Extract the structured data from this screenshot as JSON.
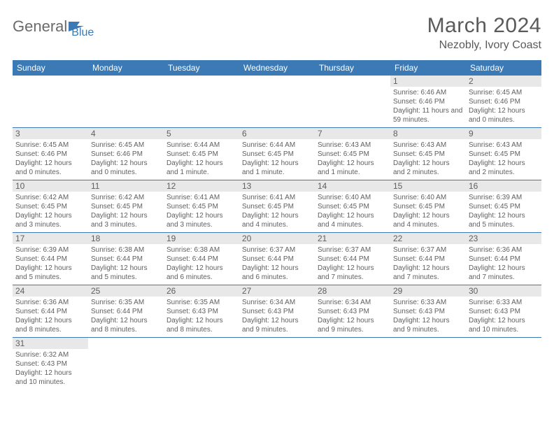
{
  "logo": {
    "text1": "General",
    "text2": "Blue"
  },
  "title": {
    "month": "March 2024",
    "location": "Nezobly, Ivory Coast"
  },
  "day_headers": [
    "Sunday",
    "Monday",
    "Tuesday",
    "Wednesday",
    "Thursday",
    "Friday",
    "Saturday"
  ],
  "colors": {
    "header_bg": "#3b7ab5",
    "header_text": "#ffffff",
    "day_num_bg": "#e8e8e8",
    "text_color": "#606060",
    "border_color": "#3b7ab5"
  },
  "weeks": [
    [
      null,
      null,
      null,
      null,
      null,
      {
        "num": "1",
        "sunrise": "Sunrise: 6:46 AM",
        "sunset": "Sunset: 6:46 PM",
        "daylight": "Daylight: 11 hours and 59 minutes."
      },
      {
        "num": "2",
        "sunrise": "Sunrise: 6:45 AM",
        "sunset": "Sunset: 6:46 PM",
        "daylight": "Daylight: 12 hours and 0 minutes."
      }
    ],
    [
      {
        "num": "3",
        "sunrise": "Sunrise: 6:45 AM",
        "sunset": "Sunset: 6:46 PM",
        "daylight": "Daylight: 12 hours and 0 minutes."
      },
      {
        "num": "4",
        "sunrise": "Sunrise: 6:45 AM",
        "sunset": "Sunset: 6:46 PM",
        "daylight": "Daylight: 12 hours and 0 minutes."
      },
      {
        "num": "5",
        "sunrise": "Sunrise: 6:44 AM",
        "sunset": "Sunset: 6:45 PM",
        "daylight": "Daylight: 12 hours and 1 minute."
      },
      {
        "num": "6",
        "sunrise": "Sunrise: 6:44 AM",
        "sunset": "Sunset: 6:45 PM",
        "daylight": "Daylight: 12 hours and 1 minute."
      },
      {
        "num": "7",
        "sunrise": "Sunrise: 6:43 AM",
        "sunset": "Sunset: 6:45 PM",
        "daylight": "Daylight: 12 hours and 1 minute."
      },
      {
        "num": "8",
        "sunrise": "Sunrise: 6:43 AM",
        "sunset": "Sunset: 6:45 PM",
        "daylight": "Daylight: 12 hours and 2 minutes."
      },
      {
        "num": "9",
        "sunrise": "Sunrise: 6:43 AM",
        "sunset": "Sunset: 6:45 PM",
        "daylight": "Daylight: 12 hours and 2 minutes."
      }
    ],
    [
      {
        "num": "10",
        "sunrise": "Sunrise: 6:42 AM",
        "sunset": "Sunset: 6:45 PM",
        "daylight": "Daylight: 12 hours and 3 minutes."
      },
      {
        "num": "11",
        "sunrise": "Sunrise: 6:42 AM",
        "sunset": "Sunset: 6:45 PM",
        "daylight": "Daylight: 12 hours and 3 minutes."
      },
      {
        "num": "12",
        "sunrise": "Sunrise: 6:41 AM",
        "sunset": "Sunset: 6:45 PM",
        "daylight": "Daylight: 12 hours and 3 minutes."
      },
      {
        "num": "13",
        "sunrise": "Sunrise: 6:41 AM",
        "sunset": "Sunset: 6:45 PM",
        "daylight": "Daylight: 12 hours and 4 minutes."
      },
      {
        "num": "14",
        "sunrise": "Sunrise: 6:40 AM",
        "sunset": "Sunset: 6:45 PM",
        "daylight": "Daylight: 12 hours and 4 minutes."
      },
      {
        "num": "15",
        "sunrise": "Sunrise: 6:40 AM",
        "sunset": "Sunset: 6:45 PM",
        "daylight": "Daylight: 12 hours and 4 minutes."
      },
      {
        "num": "16",
        "sunrise": "Sunrise: 6:39 AM",
        "sunset": "Sunset: 6:45 PM",
        "daylight": "Daylight: 12 hours and 5 minutes."
      }
    ],
    [
      {
        "num": "17",
        "sunrise": "Sunrise: 6:39 AM",
        "sunset": "Sunset: 6:44 PM",
        "daylight": "Daylight: 12 hours and 5 minutes."
      },
      {
        "num": "18",
        "sunrise": "Sunrise: 6:38 AM",
        "sunset": "Sunset: 6:44 PM",
        "daylight": "Daylight: 12 hours and 5 minutes."
      },
      {
        "num": "19",
        "sunrise": "Sunrise: 6:38 AM",
        "sunset": "Sunset: 6:44 PM",
        "daylight": "Daylight: 12 hours and 6 minutes."
      },
      {
        "num": "20",
        "sunrise": "Sunrise: 6:37 AM",
        "sunset": "Sunset: 6:44 PM",
        "daylight": "Daylight: 12 hours and 6 minutes."
      },
      {
        "num": "21",
        "sunrise": "Sunrise: 6:37 AM",
        "sunset": "Sunset: 6:44 PM",
        "daylight": "Daylight: 12 hours and 7 minutes."
      },
      {
        "num": "22",
        "sunrise": "Sunrise: 6:37 AM",
        "sunset": "Sunset: 6:44 PM",
        "daylight": "Daylight: 12 hours and 7 minutes."
      },
      {
        "num": "23",
        "sunrise": "Sunrise: 6:36 AM",
        "sunset": "Sunset: 6:44 PM",
        "daylight": "Daylight: 12 hours and 7 minutes."
      }
    ],
    [
      {
        "num": "24",
        "sunrise": "Sunrise: 6:36 AM",
        "sunset": "Sunset: 6:44 PM",
        "daylight": "Daylight: 12 hours and 8 minutes."
      },
      {
        "num": "25",
        "sunrise": "Sunrise: 6:35 AM",
        "sunset": "Sunset: 6:44 PM",
        "daylight": "Daylight: 12 hours and 8 minutes."
      },
      {
        "num": "26",
        "sunrise": "Sunrise: 6:35 AM",
        "sunset": "Sunset: 6:43 PM",
        "daylight": "Daylight: 12 hours and 8 minutes."
      },
      {
        "num": "27",
        "sunrise": "Sunrise: 6:34 AM",
        "sunset": "Sunset: 6:43 PM",
        "daylight": "Daylight: 12 hours and 9 minutes."
      },
      {
        "num": "28",
        "sunrise": "Sunrise: 6:34 AM",
        "sunset": "Sunset: 6:43 PM",
        "daylight": "Daylight: 12 hours and 9 minutes."
      },
      {
        "num": "29",
        "sunrise": "Sunrise: 6:33 AM",
        "sunset": "Sunset: 6:43 PM",
        "daylight": "Daylight: 12 hours and 9 minutes."
      },
      {
        "num": "30",
        "sunrise": "Sunrise: 6:33 AM",
        "sunset": "Sunset: 6:43 PM",
        "daylight": "Daylight: 12 hours and 10 minutes."
      }
    ],
    [
      {
        "num": "31",
        "sunrise": "Sunrise: 6:32 AM",
        "sunset": "Sunset: 6:43 PM",
        "daylight": "Daylight: 12 hours and 10 minutes."
      },
      null,
      null,
      null,
      null,
      null,
      null
    ]
  ]
}
